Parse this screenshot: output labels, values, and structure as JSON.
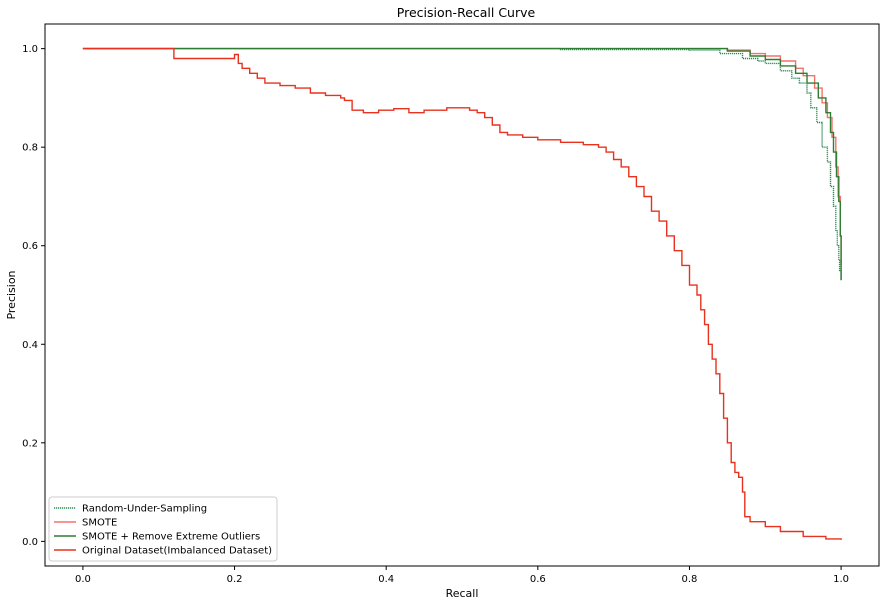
{
  "chart_data": {
    "type": "line",
    "title": "Precision-Recall Curve",
    "xlabel": "Recall",
    "ylabel": "Precision",
    "xlim": [
      -0.05,
      1.05
    ],
    "ylim": [
      -0.05,
      1.05
    ],
    "xticks": [
      0.0,
      0.2,
      0.4,
      0.6,
      0.8,
      1.0
    ],
    "xtick_labels": [
      "0.0",
      "0.2",
      "0.4",
      "0.6",
      "0.8",
      "1.0"
    ],
    "yticks": [
      0.0,
      0.2,
      0.4,
      0.6,
      0.8,
      1.0
    ],
    "ytick_labels": [
      "0.0",
      "0.2",
      "0.4",
      "0.6",
      "0.8",
      "1.0"
    ],
    "grid": false,
    "legend_position": "lower-left",
    "series": [
      {
        "name": "Random-Under-Sampling",
        "color": "#2e8b57",
        "style": "dotted-step",
        "points": [
          [
            0.0,
            1.0
          ],
          [
            0.63,
            1.0
          ],
          [
            0.63,
            0.998
          ],
          [
            0.8,
            0.997
          ],
          [
            0.84,
            0.99
          ],
          [
            0.87,
            0.98
          ],
          [
            0.89,
            0.975
          ],
          [
            0.9,
            0.97
          ],
          [
            0.92,
            0.955
          ],
          [
            0.935,
            0.94
          ],
          [
            0.945,
            0.93
          ],
          [
            0.955,
            0.91
          ],
          [
            0.96,
            0.88
          ],
          [
            0.968,
            0.85
          ],
          [
            0.975,
            0.8
          ],
          [
            0.982,
            0.77
          ],
          [
            0.986,
            0.72
          ],
          [
            0.99,
            0.68
          ],
          [
            0.993,
            0.63
          ],
          [
            0.995,
            0.6
          ],
          [
            0.997,
            0.57
          ],
          [
            0.998,
            0.55
          ],
          [
            1.0,
            0.53
          ]
        ]
      },
      {
        "name": "SMOTE",
        "color": "#f4726a",
        "style": "step",
        "points": [
          [
            0.0,
            1.0
          ],
          [
            0.8,
            1.0
          ],
          [
            0.85,
            0.997
          ],
          [
            0.88,
            0.99
          ],
          [
            0.9,
            0.985
          ],
          [
            0.92,
            0.975
          ],
          [
            0.94,
            0.96
          ],
          [
            0.95,
            0.945
          ],
          [
            0.965,
            0.92
          ],
          [
            0.975,
            0.89
          ],
          [
            0.982,
            0.86
          ],
          [
            0.988,
            0.82
          ],
          [
            0.993,
            0.76
          ],
          [
            0.996,
            0.7
          ],
          [
            0.999,
            0.62
          ],
          [
            1.0,
            0.56
          ]
        ]
      },
      {
        "name": "SMOTE + Remove Extreme Outliers",
        "color": "#2e7d32",
        "style": "step",
        "points": [
          [
            0.0,
            1.0
          ],
          [
            0.82,
            1.0
          ],
          [
            0.85,
            0.995
          ],
          [
            0.88,
            0.985
          ],
          [
            0.9,
            0.978
          ],
          [
            0.92,
            0.965
          ],
          [
            0.94,
            0.95
          ],
          [
            0.955,
            0.93
          ],
          [
            0.97,
            0.9
          ],
          [
            0.98,
            0.87
          ],
          [
            0.986,
            0.83
          ],
          [
            0.99,
            0.79
          ],
          [
            0.994,
            0.74
          ],
          [
            0.997,
            0.69
          ],
          [
            0.999,
            0.62
          ],
          [
            1.0,
            0.53
          ]
        ]
      },
      {
        "name": "Original Dataset(Imbalanced Dataset)",
        "color": "#e8321f",
        "style": "step",
        "points": [
          [
            0.0,
            1.0
          ],
          [
            0.12,
            1.0
          ],
          [
            0.12,
            0.98
          ],
          [
            0.2,
            0.988
          ],
          [
            0.205,
            0.97
          ],
          [
            0.21,
            0.96
          ],
          [
            0.22,
            0.95
          ],
          [
            0.23,
            0.94
          ],
          [
            0.24,
            0.93
          ],
          [
            0.26,
            0.925
          ],
          [
            0.28,
            0.92
          ],
          [
            0.3,
            0.91
          ],
          [
            0.32,
            0.905
          ],
          [
            0.34,
            0.9
          ],
          [
            0.345,
            0.895
          ],
          [
            0.355,
            0.875
          ],
          [
            0.37,
            0.87
          ],
          [
            0.39,
            0.875
          ],
          [
            0.41,
            0.878
          ],
          [
            0.43,
            0.87
          ],
          [
            0.45,
            0.875
          ],
          [
            0.48,
            0.88
          ],
          [
            0.51,
            0.875
          ],
          [
            0.52,
            0.87
          ],
          [
            0.53,
            0.86
          ],
          [
            0.54,
            0.845
          ],
          [
            0.55,
            0.83
          ],
          [
            0.56,
            0.825
          ],
          [
            0.58,
            0.82
          ],
          [
            0.6,
            0.815
          ],
          [
            0.63,
            0.81
          ],
          [
            0.66,
            0.805
          ],
          [
            0.68,
            0.8
          ],
          [
            0.69,
            0.79
          ],
          [
            0.7,
            0.775
          ],
          [
            0.71,
            0.76
          ],
          [
            0.72,
            0.74
          ],
          [
            0.73,
            0.72
          ],
          [
            0.74,
            0.7
          ],
          [
            0.75,
            0.67
          ],
          [
            0.76,
            0.65
          ],
          [
            0.77,
            0.62
          ],
          [
            0.78,
            0.59
          ],
          [
            0.79,
            0.56
          ],
          [
            0.8,
            0.52
          ],
          [
            0.81,
            0.5
          ],
          [
            0.815,
            0.47
          ],
          [
            0.82,
            0.44
          ],
          [
            0.825,
            0.4
          ],
          [
            0.83,
            0.37
          ],
          [
            0.835,
            0.34
          ],
          [
            0.84,
            0.3
          ],
          [
            0.845,
            0.25
          ],
          [
            0.85,
            0.2
          ],
          [
            0.855,
            0.16
          ],
          [
            0.86,
            0.14
          ],
          [
            0.865,
            0.13
          ],
          [
            0.87,
            0.1
          ],
          [
            0.873,
            0.05
          ],
          [
            0.88,
            0.04
          ],
          [
            0.9,
            0.03
          ],
          [
            0.92,
            0.02
          ],
          [
            0.95,
            0.01
          ],
          [
            0.98,
            0.005
          ],
          [
            1.0,
            0.003
          ]
        ]
      }
    ]
  }
}
